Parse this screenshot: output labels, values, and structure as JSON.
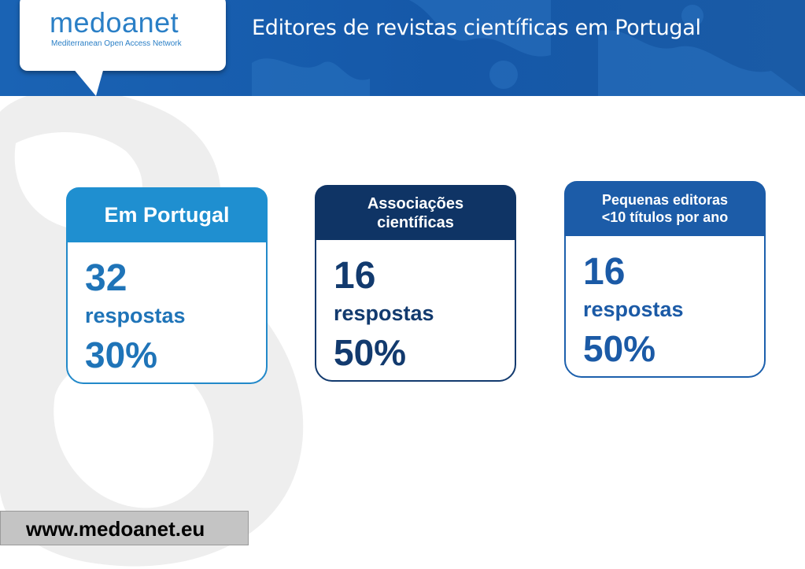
{
  "logo": {
    "wordmark": "medoanet",
    "tagline": "Mediterranean Open Access Network"
  },
  "title": "Editores de revistas científicas em Portugal",
  "cards": [
    {
      "heading": "Em Portugal",
      "count": "32",
      "unit": "respostas",
      "percent": "30%"
    },
    {
      "heading_line1": "Associações",
      "heading_line2": "científicas",
      "count": "16",
      "unit": "respostas",
      "percent": "50%"
    },
    {
      "heading_line1": "Pequenas editoras",
      "heading_line2": "<10 títulos por ano",
      "count": "16",
      "unit": "respostas",
      "percent": "50%"
    }
  ],
  "footer": {
    "url": "www.medoanet.eu"
  },
  "colors": {
    "header": "#1558a8",
    "card1": "#1f8fd0",
    "card2": "#0f3465",
    "card3": "#1c5ca8"
  }
}
